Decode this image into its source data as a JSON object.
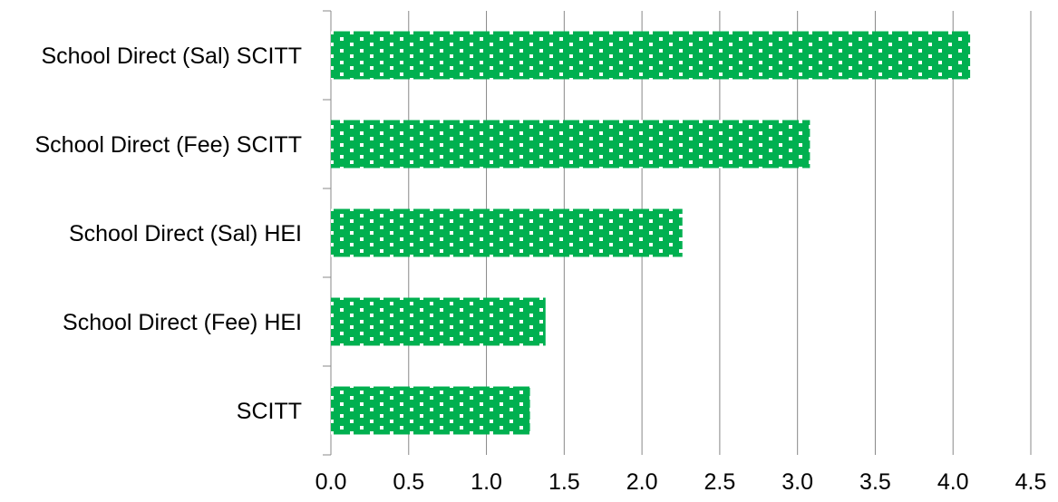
{
  "chart_data": {
    "type": "bar",
    "orientation": "horizontal",
    "categories": [
      "School Direct (Sal) SCITT",
      "School Direct (Fee) SCITT",
      "School Direct (Sal) HEI",
      "School Direct (Fee) HEI",
      "SCITT"
    ],
    "values": [
      4.11,
      3.08,
      2.26,
      1.38,
      1.28
    ],
    "xlim": [
      0,
      4.5
    ],
    "xticks": [
      "0.0",
      "0.5",
      "1.0",
      "1.5",
      "2.0",
      "2.5",
      "3.0",
      "3.5",
      "4.0",
      "4.5"
    ],
    "grid": true,
    "legend": "none",
    "bar_color": "#00b050",
    "bar_pattern": "white dotted grid",
    "gridline_color": "#888888",
    "title": "",
    "xlabel": "",
    "ylabel": ""
  }
}
